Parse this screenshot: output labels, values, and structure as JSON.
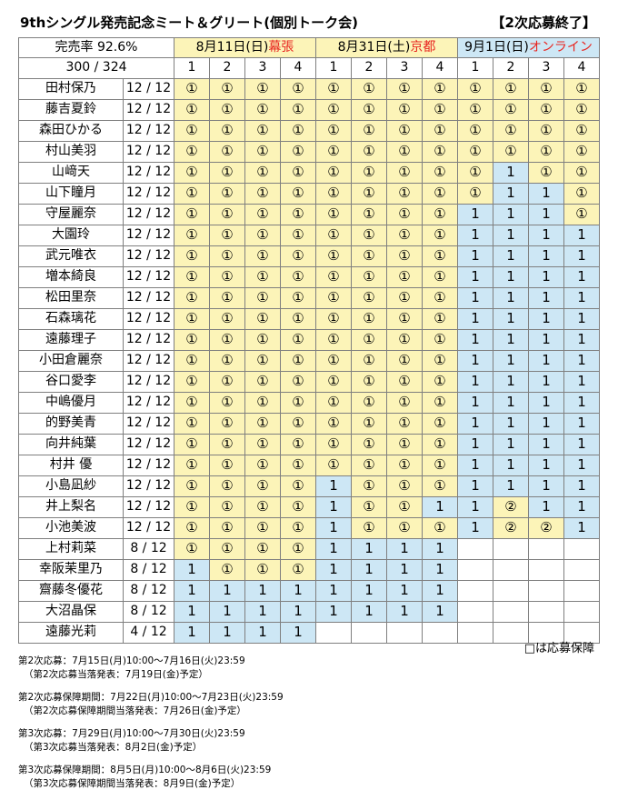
{
  "title": "9thシングル発売記念ミート＆グリート(個別トーク会)",
  "status": "【2次応募終了】",
  "rate_label": "完売率 92.6%",
  "total": "300 / 324",
  "events": [
    {
      "date": "8月11日(日)",
      "place": "幕張"
    },
    {
      "date": "8月31日(土)",
      "place": "京都"
    },
    {
      "date": "9月1日(日)",
      "place": "オンライン"
    }
  ],
  "parts": [
    "1",
    "2",
    "3",
    "4",
    "1",
    "2",
    "3",
    "4",
    "1",
    "2",
    "3",
    "4"
  ],
  "members": [
    {
      "name": "田村保乃",
      "count": "12 / 12",
      "slots": [
        "①",
        "①",
        "①",
        "①",
        "①",
        "①",
        "①",
        "①",
        "①",
        "①",
        "①",
        "①"
      ]
    },
    {
      "name": "藤吉夏鈴",
      "count": "12 / 12",
      "slots": [
        "①",
        "①",
        "①",
        "①",
        "①",
        "①",
        "①",
        "①",
        "①",
        "①",
        "①",
        "①"
      ]
    },
    {
      "name": "森田ひかる",
      "count": "12 / 12",
      "slots": [
        "①",
        "①",
        "①",
        "①",
        "①",
        "①",
        "①",
        "①",
        "①",
        "①",
        "①",
        "①"
      ]
    },
    {
      "name": "村山美羽",
      "count": "12 / 12",
      "slots": [
        "①",
        "①",
        "①",
        "①",
        "①",
        "①",
        "①",
        "①",
        "①",
        "①",
        "①",
        "①"
      ]
    },
    {
      "name": "山﨑天",
      "count": "12 / 12",
      "slots": [
        "①",
        "①",
        "①",
        "①",
        "①",
        "①",
        "①",
        "①",
        "①",
        "1",
        "①",
        "①"
      ]
    },
    {
      "name": "山下瞳月",
      "count": "12 / 12",
      "slots": [
        "①",
        "①",
        "①",
        "①",
        "①",
        "①",
        "①",
        "①",
        "①",
        "1",
        "1",
        "①"
      ]
    },
    {
      "name": "守屋麗奈",
      "count": "12 / 12",
      "slots": [
        "①",
        "①",
        "①",
        "①",
        "①",
        "①",
        "①",
        "①",
        "1",
        "1",
        "1",
        "①"
      ]
    },
    {
      "name": "大園玲",
      "count": "12 / 12",
      "slots": [
        "①",
        "①",
        "①",
        "①",
        "①",
        "①",
        "①",
        "①",
        "1",
        "1",
        "1",
        "1"
      ]
    },
    {
      "name": "武元唯衣",
      "count": "12 / 12",
      "slots": [
        "①",
        "①",
        "①",
        "①",
        "①",
        "①",
        "①",
        "①",
        "1",
        "1",
        "1",
        "1"
      ]
    },
    {
      "name": "増本綺良",
      "count": "12 / 12",
      "slots": [
        "①",
        "①",
        "①",
        "①",
        "①",
        "①",
        "①",
        "①",
        "1",
        "1",
        "1",
        "1"
      ]
    },
    {
      "name": "松田里奈",
      "count": "12 / 12",
      "slots": [
        "①",
        "①",
        "①",
        "①",
        "①",
        "①",
        "①",
        "①",
        "1",
        "1",
        "1",
        "1"
      ]
    },
    {
      "name": "石森璃花",
      "count": "12 / 12",
      "slots": [
        "①",
        "①",
        "①",
        "①",
        "①",
        "①",
        "①",
        "①",
        "1",
        "1",
        "1",
        "1"
      ]
    },
    {
      "name": "遠藤理子",
      "count": "12 / 12",
      "slots": [
        "①",
        "①",
        "①",
        "①",
        "①",
        "①",
        "①",
        "①",
        "1",
        "1",
        "1",
        "1"
      ]
    },
    {
      "name": "小田倉麗奈",
      "count": "12 / 12",
      "slots": [
        "①",
        "①",
        "①",
        "①",
        "①",
        "①",
        "①",
        "①",
        "1",
        "1",
        "1",
        "1"
      ]
    },
    {
      "name": "谷口愛李",
      "count": "12 / 12",
      "slots": [
        "①",
        "①",
        "①",
        "①",
        "①",
        "①",
        "①",
        "①",
        "1",
        "1",
        "1",
        "1"
      ]
    },
    {
      "name": "中嶋優月",
      "count": "12 / 12",
      "slots": [
        "①",
        "①",
        "①",
        "①",
        "①",
        "①",
        "①",
        "①",
        "1",
        "1",
        "1",
        "1"
      ]
    },
    {
      "name": "的野美青",
      "count": "12 / 12",
      "slots": [
        "①",
        "①",
        "①",
        "①",
        "①",
        "①",
        "①",
        "①",
        "1",
        "1",
        "1",
        "1"
      ]
    },
    {
      "name": "向井純葉",
      "count": "12 / 12",
      "slots": [
        "①",
        "①",
        "①",
        "①",
        "①",
        "①",
        "①",
        "①",
        "1",
        "1",
        "1",
        "1"
      ]
    },
    {
      "name": "村井 優",
      "count": "12 / 12",
      "slots": [
        "①",
        "①",
        "①",
        "①",
        "①",
        "①",
        "①",
        "①",
        "1",
        "1",
        "1",
        "1"
      ]
    },
    {
      "name": "小島凪紗",
      "count": "12 / 12",
      "slots": [
        "①",
        "①",
        "①",
        "①",
        "1",
        "①",
        "①",
        "①",
        "1",
        "1",
        "1",
        "1"
      ]
    },
    {
      "name": "井上梨名",
      "count": "12 / 12",
      "slots": [
        "①",
        "①",
        "①",
        "①",
        "1",
        "①",
        "①",
        "1",
        "1",
        "②",
        "1",
        "1"
      ]
    },
    {
      "name": "小池美波",
      "count": "12 / 12",
      "slots": [
        "①",
        "①",
        "①",
        "①",
        "1",
        "①",
        "①",
        "①",
        "1",
        "②",
        "②",
        "1"
      ]
    },
    {
      "name": "上村莉菜",
      "count": "8 / 12",
      "slots": [
        "①",
        "①",
        "①",
        "①",
        "1",
        "1",
        "1",
        "1",
        "",
        "",
        "",
        ""
      ]
    },
    {
      "name": "幸阪茉里乃",
      "count": "8 / 12",
      "slots": [
        "1",
        "①",
        "①",
        "①",
        "1",
        "1",
        "1",
        "1",
        "",
        "",
        "",
        ""
      ]
    },
    {
      "name": "齋藤冬優花",
      "count": "8 / 12",
      "slots": [
        "1",
        "1",
        "1",
        "1",
        "1",
        "1",
        "1",
        "1",
        "",
        "",
        "",
        ""
      ]
    },
    {
      "name": "大沼晶保",
      "count": "8 / 12",
      "slots": [
        "1",
        "1",
        "1",
        "1",
        "1",
        "1",
        "1",
        "1",
        "",
        "",
        "",
        ""
      ]
    },
    {
      "name": "遠藤光莉",
      "count": "4 / 12",
      "slots": [
        "1",
        "1",
        "1",
        "1",
        "",
        "",
        "",
        "",
        "",
        "",
        "",
        ""
      ]
    }
  ],
  "legend": "□は応募保障",
  "notes": [
    {
      "line": "第2次応募：7月15日(月)10:00〜7月16日(火)23:59",
      "sub": "（第2次応募当落発表：7月19日(金)予定）"
    },
    {
      "line": "第2次応募保障期間：7月22日(月)10:00〜7月23日(火)23:59",
      "sub": "（第2次応募保障期間当落発表：7月26日(金)予定）"
    },
    {
      "line": "第3次応募：7月29日(月)10:00〜7月30日(火)23:59",
      "sub": "（第3次応募当落発表：8月2日(金)予定）"
    },
    {
      "line": "第3次応募保障期間：8月5日(月)10:00〜8月6日(火)23:59",
      "sub": "（第3次応募保障期間当落発表：8月9日(金)予定）"
    }
  ],
  "colors": {
    "sold": "#fcf4b8",
    "guaranteed": "#cde7f5",
    "place": "#e8241f"
  }
}
